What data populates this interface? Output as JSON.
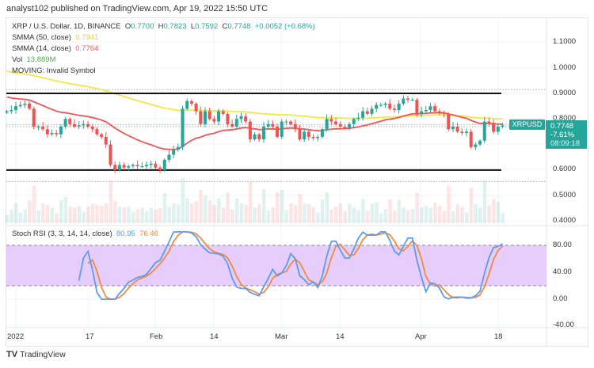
{
  "header": {
    "published": "analyst102 published on TradingView.com, Apr 19, 2022 15:50 UTC"
  },
  "legend": {
    "symbol": "XRP / U.S. Dollar, 1D, BINANCE",
    "o_label": "O",
    "o": "0.7700",
    "h_label": "H",
    "h": "0.7823",
    "l_label": "L",
    "l": "0.7592",
    "c_label": "C",
    "c": "0.7748",
    "change": "+0.0052 (+0.68%)",
    "smma50_label": "SMMA (50, close)",
    "smma50": "0.7941",
    "smma14_label": "SMMA (14, close)",
    "smma14": "0.7764",
    "vol_label": "Vol",
    "vol": "13.889M",
    "moving": "MOVING: Invalid Symbol"
  },
  "rsi_legend": {
    "label": "Stoch RSI (3, 3, 14, 14, close)",
    "k": "80.95",
    "d": "76.46"
  },
  "price_axis": [
    "1.1000",
    "1.0000",
    "0.9000",
    "0.8000",
    "0.6000",
    "0.5000",
    "0.4000"
  ],
  "rsi_axis": [
    "80.00",
    "40.00",
    "0.00",
    "-40.00"
  ],
  "time_axis": [
    "2022",
    "17",
    "Feb",
    "14",
    "Mar",
    "14",
    "Apr",
    "18"
  ],
  "price_tag": {
    "symbol": "XRPUSD",
    "price": "0.7748",
    "change": "-7.61%",
    "countdown": "08:09:18"
  },
  "footer": {
    "brand": "TradingView"
  },
  "colors": {
    "up": "#26a69a",
    "down": "#ef5350",
    "smma50": "#f5e642",
    "smma14": "#f05454",
    "k": "#5b9cf0",
    "d": "#f08a40",
    "band": "#e6cdfb"
  },
  "chart_data": {
    "type": "candlestick",
    "start_date": "2021-12-30",
    "end_date": "2022-04-19",
    "closes": [
      0.83,
      0.835,
      0.85,
      0.855,
      0.86,
      0.84,
      0.77,
      0.77,
      0.76,
      0.74,
      0.745,
      0.74,
      0.77,
      0.8,
      0.78,
      0.77,
      0.775,
      0.78,
      0.77,
      0.76,
      0.74,
      0.73,
      0.7,
      0.62,
      0.6,
      0.62,
      0.61,
      0.615,
      0.62,
      0.615,
      0.615,
      0.62,
      0.625,
      0.61,
      0.6,
      0.64,
      0.66,
      0.68,
      0.69,
      0.84,
      0.87,
      0.86,
      0.83,
      0.78,
      0.83,
      0.8,
      0.79,
      0.83,
      0.82,
      0.78,
      0.77,
      0.8,
      0.81,
      0.79,
      0.72,
      0.74,
      0.72,
      0.77,
      0.78,
      0.77,
      0.73,
      0.79,
      0.79,
      0.78,
      0.76,
      0.72,
      0.75,
      0.73,
      0.725,
      0.73,
      0.76,
      0.8,
      0.79,
      0.78,
      0.77,
      0.765,
      0.78,
      0.8,
      0.805,
      0.83,
      0.82,
      0.84,
      0.855,
      0.855,
      0.86,
      0.84,
      0.835,
      0.86,
      0.88,
      0.875,
      0.875,
      0.82,
      0.83,
      0.835,
      0.85,
      0.83,
      0.825,
      0.82,
      0.76,
      0.77,
      0.75,
      0.745,
      0.75,
      0.69,
      0.7,
      0.715,
      0.79,
      0.785,
      0.75,
      0.77,
      0.7748
    ],
    "horizontal_levels": [
      0.9,
      0.6
    ],
    "price_range": [
      0.4,
      1.15
    ],
    "rsi_range": [
      -45,
      105
    ]
  }
}
